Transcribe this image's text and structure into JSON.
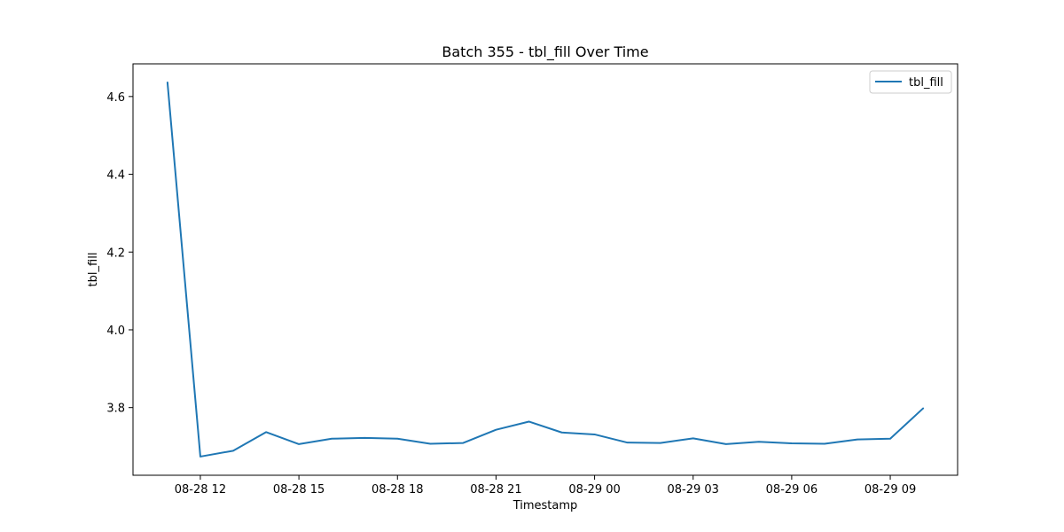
{
  "chart_data": {
    "type": "line",
    "title": "Batch 355 - tbl_fill Over Time",
    "xlabel": "Timestamp",
    "ylabel": "tbl_fill",
    "x": [
      "2025-08-28 11:00",
      "2025-08-28 12:00",
      "2025-08-28 13:00",
      "2025-08-28 14:00",
      "2025-08-28 15:00",
      "2025-08-28 16:00",
      "2025-08-28 17:00",
      "2025-08-28 18:00",
      "2025-08-28 19:00",
      "2025-08-28 20:00",
      "2025-08-28 21:00",
      "2025-08-28 22:00",
      "2025-08-28 23:00",
      "2025-08-29 00:00",
      "2025-08-29 01:00",
      "2025-08-29 02:00",
      "2025-08-29 03:00",
      "2025-08-29 04:00",
      "2025-08-29 05:00",
      "2025-08-29 06:00",
      "2025-08-29 07:00",
      "2025-08-29 08:00",
      "2025-08-29 09:00",
      "2025-08-29 10:00"
    ],
    "series": [
      {
        "name": "tbl_fill",
        "color": "#1f77b4",
        "values": [
          4.636,
          3.674,
          3.689,
          3.737,
          3.706,
          3.72,
          3.722,
          3.72,
          3.707,
          3.709,
          3.743,
          3.764,
          3.736,
          3.731,
          3.71,
          3.709,
          3.721,
          3.706,
          3.712,
          3.708,
          3.707,
          3.718,
          3.72,
          3.798
        ]
      }
    ],
    "x_ticks": [
      {
        "value": "2025-08-28 12:00",
        "label": "08-28 12"
      },
      {
        "value": "2025-08-28 15:00",
        "label": "08-28 15"
      },
      {
        "value": "2025-08-28 18:00",
        "label": "08-28 18"
      },
      {
        "value": "2025-08-28 21:00",
        "label": "08-28 21"
      },
      {
        "value": "2025-08-29 00:00",
        "label": "08-29 00"
      },
      {
        "value": "2025-08-29 03:00",
        "label": "08-29 03"
      },
      {
        "value": "2025-08-29 06:00",
        "label": "08-29 06"
      },
      {
        "value": "2025-08-29 09:00",
        "label": "08-29 09"
      }
    ],
    "y_ticks": [
      {
        "value": 3.8,
        "label": "3.8"
      },
      {
        "value": 4.0,
        "label": "4.0"
      },
      {
        "value": 4.2,
        "label": "4.2"
      },
      {
        "value": 4.4,
        "label": "4.4"
      },
      {
        "value": 4.6,
        "label": "4.6"
      }
    ],
    "xlim": [
      "2025-08-28 09:57",
      "2025-08-29 11:03"
    ],
    "ylim": [
      3.626,
      4.684
    ],
    "grid": false,
    "legend": "upper right"
  }
}
